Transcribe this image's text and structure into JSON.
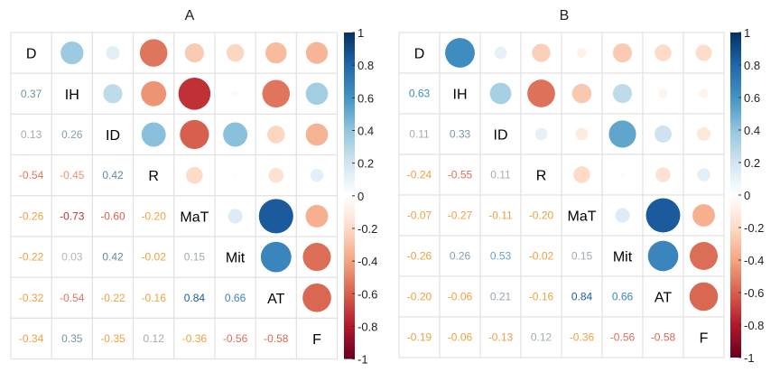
{
  "chart_data": [
    {
      "type": "heatmap",
      "title": "A",
      "variables": [
        "D",
        "IH",
        "ID",
        "R",
        "MaT",
        "Mit",
        "AT",
        "F"
      ],
      "lower_triangle": [
        [],
        [
          0.37
        ],
        [
          0.13,
          0.26
        ],
        [
          -0.54,
          -0.45,
          0.42
        ],
        [
          -0.26,
          -0.73,
          -0.6,
          -0.2
        ],
        [
          -0.22,
          0.03,
          0.42,
          -0.02,
          0.15
        ],
        [
          -0.32,
          -0.54,
          -0.22,
          -0.16,
          0.84,
          0.66
        ],
        [
          -0.34,
          0.35,
          -0.35,
          0.12,
          -0.36,
          -0.56,
          -0.58
        ]
      ],
      "upper_display": "circle",
      "lower_display": "number",
      "colorbar": {
        "range": [
          -1,
          1
        ],
        "ticks": [
          "1",
          "0.8",
          "0.6",
          "0.4",
          "0.2",
          "0",
          "-0.2",
          "-0.4",
          "-0.6",
          "-0.8",
          "-1"
        ],
        "palette": [
          "#67001f",
          "#b2182b",
          "#d6604d",
          "#f4a582",
          "#fddbc7",
          "#ffffff",
          "#d1e5f0",
          "#92c5de",
          "#4393c3",
          "#2166ac",
          "#053061"
        ]
      }
    },
    {
      "type": "heatmap",
      "title": "B",
      "variables": [
        "D",
        "IH",
        "ID",
        "R",
        "MaT",
        "Mit",
        "AT",
        "F"
      ],
      "lower_triangle": [
        [],
        [
          0.63
        ],
        [
          0.11,
          0.33
        ],
        [
          -0.24,
          -0.55,
          0.11
        ],
        [
          -0.07,
          -0.27,
          -0.11,
          -0.2
        ],
        [
          -0.26,
          0.26,
          0.53,
          -0.02,
          0.15
        ],
        [
          -0.2,
          -0.06,
          0.21,
          -0.16,
          0.84,
          0.66
        ],
        [
          -0.19,
          -0.06,
          -0.13,
          0.12,
          -0.36,
          -0.56,
          -0.58
        ]
      ],
      "upper_display": "circle",
      "lower_display": "number",
      "colorbar": {
        "range": [
          -1,
          1
        ],
        "ticks": [
          "1",
          "0.8",
          "0.6",
          "0.4",
          "0.2",
          "0",
          "-0.2",
          "-0.4",
          "-0.6",
          "-0.8",
          "-1"
        ],
        "palette": [
          "#67001f",
          "#b2182b",
          "#d6604d",
          "#f4a582",
          "#fddbc7",
          "#ffffff",
          "#d1e5f0",
          "#92c5de",
          "#4393c3",
          "#2166ac",
          "#053061"
        ]
      }
    }
  ]
}
